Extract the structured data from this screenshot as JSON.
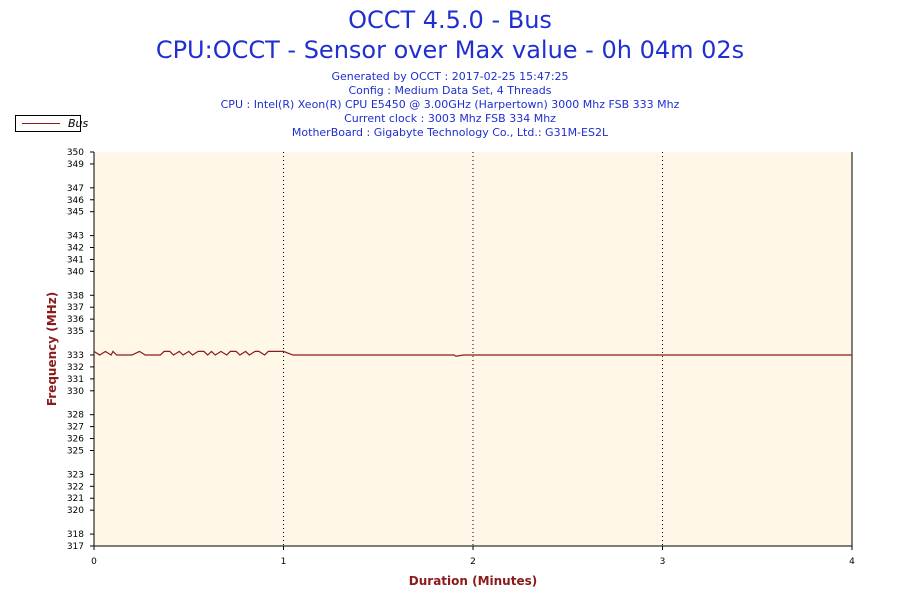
{
  "title": "OCCT 4.5.0 - Bus",
  "subtitle": "CPU:OCCT - Sensor over Max value - 0h 04m 02s",
  "info_lines": [
    "Generated by OCCT : 2017-02-25 15:47:25",
    "Config : Medium Data Set, 4 Threads",
    "CPU : Intel(R) Xeon(R) CPU E5450 @ 3.00GHz (Harpertown) 3000 Mhz FSB 333 Mhz",
    "Current clock : 3003 Mhz FSB 334 Mhz",
    "MotherBoard : Gigabyte Technology Co., Ltd.: G31M-ES2L"
  ],
  "colors": {
    "title": "#1f2fd0",
    "axis_title": "#8b1a1a",
    "series": "#8b1a1a",
    "plot_background": "#fff8e8"
  },
  "chart_data": {
    "type": "line",
    "xlabel": "Duration (Minutes)",
    "ylabel": "Frequency (MHz)",
    "xlim": [
      0,
      4
    ],
    "ylim": [
      317,
      350
    ],
    "x_ticks": [
      0,
      1,
      2,
      3,
      4
    ],
    "y_ticks": [
      317,
      318,
      320,
      321,
      322,
      323,
      325,
      326,
      327,
      328,
      330,
      331,
      332,
      333,
      335,
      336,
      337,
      338,
      340,
      341,
      342,
      343,
      345,
      346,
      347,
      349,
      350
    ],
    "grid": "vertical dotted",
    "legend": "top-left",
    "series": [
      {
        "name": "Bus",
        "x": [
          0,
          0.03,
          0.06,
          0.09,
          0.1,
          0.12,
          0.15,
          0.2,
          0.24,
          0.27,
          0.3,
          0.35,
          0.37,
          0.4,
          0.42,
          0.45,
          0.47,
          0.5,
          0.52,
          0.55,
          0.58,
          0.6,
          0.62,
          0.64,
          0.67,
          0.7,
          0.72,
          0.75,
          0.77,
          0.8,
          0.82,
          0.85,
          0.87,
          0.9,
          0.92,
          0.95,
          1.0,
          1.05,
          1.9,
          1.91,
          1.95,
          4.0
        ],
        "y": [
          333.3,
          333,
          333.3,
          333,
          333.3,
          333,
          333,
          333,
          333.3,
          333,
          333,
          333,
          333.3,
          333.3,
          333,
          333.3,
          333,
          333.3,
          333,
          333.3,
          333.3,
          333,
          333.3,
          333,
          333.3,
          333,
          333.3,
          333.3,
          333,
          333.3,
          333,
          333.3,
          333.3,
          333,
          333.3,
          333.3,
          333.3,
          333,
          333,
          332.9,
          333,
          333
        ]
      }
    ]
  }
}
